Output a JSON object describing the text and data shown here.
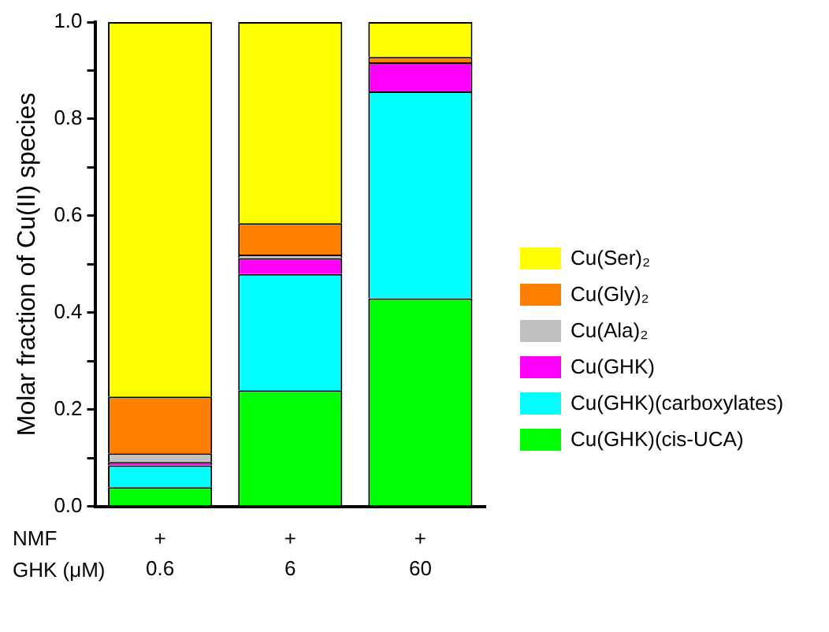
{
  "chart_data": {
    "type": "bar",
    "stacked": true,
    "ylabel": "Molar fraction of Cu(II) species",
    "xlabel": "GHK (μM)",
    "categories": [
      "0.6",
      "6",
      "60"
    ],
    "annotations": [
      "NMF",
      "+",
      "+",
      "+"
    ],
    "series": [
      {
        "name": "Cu(GHK)(cis-UCA)",
        "color": "#00ff00",
        "values": [
          0.04,
          0.24,
          0.43
        ]
      },
      {
        "name": "Cu(GHK)(carboxylates)",
        "color": "#00ffff",
        "values": [
          0.045,
          0.24,
          0.427
        ]
      },
      {
        "name": "Cu(GHK)",
        "color": "#ff00ff",
        "values": [
          0.007,
          0.033,
          0.06
        ]
      },
      {
        "name": "Cu(Ala)₂",
        "color": "#c0c0c0",
        "values": [
          0.018,
          0.007,
          0
        ]
      },
      {
        "name": "Cu(Gly)₂",
        "color": "#ff8000",
        "values": [
          0.117,
          0.065,
          0.011
        ]
      },
      {
        "name": "Cu(Ser)₂",
        "color": "#ffff00",
        "values": [
          0.773,
          0.415,
          0.072
        ]
      }
    ],
    "ylim": [
      0,
      1
    ],
    "yticks": [
      {
        "value": 0,
        "label": "0.0"
      },
      {
        "value": 0.1,
        "label": null
      },
      {
        "value": 0.2,
        "label": "0.2"
      },
      {
        "value": 0.3,
        "label": null
      },
      {
        "value": 0.4,
        "label": "0.4"
      },
      {
        "value": 0.5,
        "label": null
      },
      {
        "value": 0.6,
        "label": "0.6"
      },
      {
        "value": 0.7,
        "label": null
      },
      {
        "value": 0.8,
        "label": "0.8"
      },
      {
        "value": 0.9,
        "label": null
      },
      {
        "value": 1,
        "label": "1.0"
      }
    ],
    "grid": false,
    "legend": "right"
  }
}
